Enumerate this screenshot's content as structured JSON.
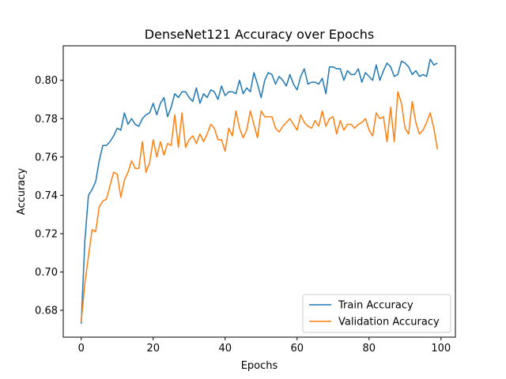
{
  "chart_data": {
    "type": "line",
    "title": "DenseNet121 Accuracy over Epochs",
    "xlabel": "Epochs",
    "ylabel": "Accuracy",
    "xlim": [
      -5,
      104
    ],
    "ylim": [
      0.666,
      0.818
    ],
    "xticks": [
      0,
      20,
      40,
      60,
      80,
      100
    ],
    "yticks": [
      0.68,
      0.7,
      0.72,
      0.74,
      0.76,
      0.78,
      0.8
    ],
    "grid": false,
    "legend_position": "lower-right",
    "series": [
      {
        "name": "Train Accuracy",
        "color": "#1f77b4",
        "values": [
          0.673,
          0.716,
          0.74,
          0.743,
          0.747,
          0.758,
          0.766,
          0.766,
          0.768,
          0.771,
          0.775,
          0.774,
          0.783,
          0.777,
          0.78,
          0.777,
          0.776,
          0.78,
          0.782,
          0.783,
          0.788,
          0.782,
          0.788,
          0.791,
          0.781,
          0.786,
          0.793,
          0.791,
          0.794,
          0.794,
          0.791,
          0.789,
          0.796,
          0.788,
          0.793,
          0.791,
          0.795,
          0.794,
          0.79,
          0.797,
          0.792,
          0.794,
          0.794,
          0.793,
          0.8,
          0.793,
          0.796,
          0.794,
          0.804,
          0.798,
          0.791,
          0.8,
          0.804,
          0.803,
          0.798,
          0.802,
          0.8,
          0.797,
          0.803,
          0.798,
          0.795,
          0.802,
          0.806,
          0.798,
          0.799,
          0.799,
          0.798,
          0.801,
          0.793,
          0.807,
          0.807,
          0.806,
          0.806,
          0.8,
          0.805,
          0.803,
          0.803,
          0.806,
          0.799,
          0.804,
          0.802,
          0.8,
          0.808,
          0.8,
          0.805,
          0.809,
          0.807,
          0.802,
          0.803,
          0.81,
          0.809,
          0.807,
          0.803,
          0.805,
          0.802,
          0.803,
          0.802,
          0.811,
          0.808,
          0.809
        ]
      },
      {
        "name": "Validation Accuracy",
        "color": "#ff7f0e",
        "values": [
          0.674,
          0.694,
          0.708,
          0.722,
          0.721,
          0.734,
          0.737,
          0.738,
          0.745,
          0.752,
          0.751,
          0.739,
          0.748,
          0.752,
          0.758,
          0.754,
          0.754,
          0.768,
          0.752,
          0.757,
          0.769,
          0.76,
          0.768,
          0.761,
          0.767,
          0.766,
          0.782,
          0.765,
          0.783,
          0.765,
          0.769,
          0.771,
          0.767,
          0.772,
          0.768,
          0.772,
          0.777,
          0.775,
          0.769,
          0.769,
          0.763,
          0.775,
          0.771,
          0.784,
          0.775,
          0.77,
          0.774,
          0.784,
          0.777,
          0.77,
          0.784,
          0.781,
          0.781,
          0.781,
          0.775,
          0.773,
          0.776,
          0.778,
          0.78,
          0.777,
          0.774,
          0.782,
          0.778,
          0.776,
          0.775,
          0.779,
          0.776,
          0.784,
          0.776,
          0.78,
          0.781,
          0.772,
          0.779,
          0.774,
          0.777,
          0.777,
          0.775,
          0.777,
          0.778,
          0.78,
          0.774,
          0.771,
          0.783,
          0.78,
          0.781,
          0.768,
          0.786,
          0.768,
          0.794,
          0.788,
          0.775,
          0.772,
          0.789,
          0.778,
          0.772,
          0.774,
          0.778,
          0.783,
          0.775,
          0.764
        ]
      }
    ]
  }
}
